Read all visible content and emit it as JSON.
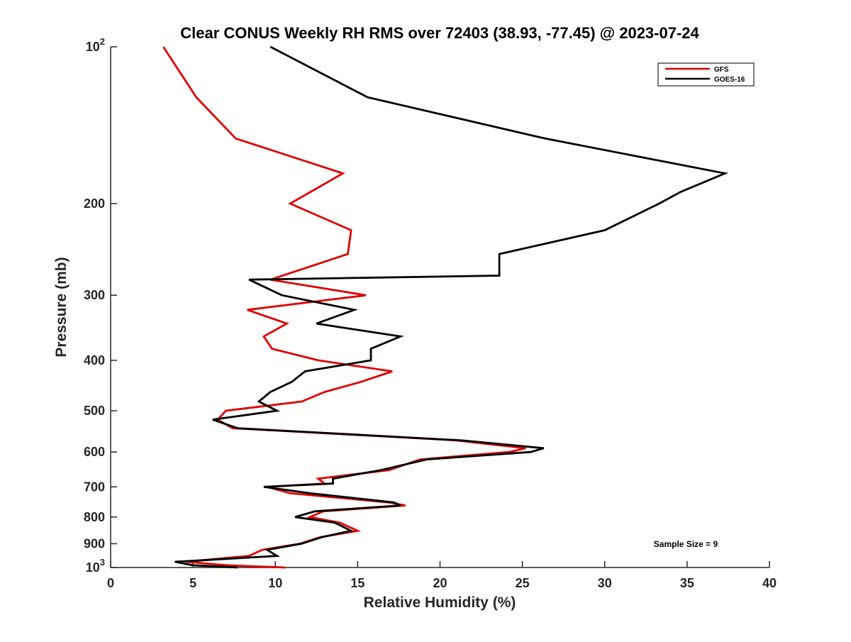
{
  "chart_data": {
    "type": "line",
    "title": "Clear CONUS Weekly RH RMS over 72403 (38.93, -77.45) @ 2023-07-24",
    "xlabel": "Relative Humidity (%)",
    "ylabel": "Pressure (mb)",
    "xlim": [
      0,
      40
    ],
    "ylim": [
      100,
      1000
    ],
    "y_scale": "log",
    "y_reversed": true,
    "grid": false,
    "legend_position": "top-right",
    "annotation": "Sample Size = 9",
    "x_ticks": [
      0,
      5,
      10,
      15,
      20,
      25,
      30,
      35,
      40
    ],
    "y_ticks": [
      {
        "value": 100,
        "base": "10",
        "exp": "2"
      },
      {
        "value": 200,
        "label": "200"
      },
      {
        "value": 300,
        "label": "300"
      },
      {
        "value": 400,
        "label": "400"
      },
      {
        "value": 500,
        "label": "500"
      },
      {
        "value": 600,
        "label": "600"
      },
      {
        "value": 700,
        "label": "700"
      },
      {
        "value": 800,
        "label": "800"
      },
      {
        "value": 900,
        "label": "900"
      },
      {
        "value": 1000,
        "base": "10",
        "exp": "3"
      }
    ],
    "series": [
      {
        "name": "GFS",
        "color": "#e00000",
        "points": [
          [
            3.2,
            100
          ],
          [
            5.2,
            125
          ],
          [
            7.6,
            150
          ],
          [
            14.1,
            175
          ],
          [
            10.9,
            200
          ],
          [
            14.6,
            225
          ],
          [
            14.4,
            250
          ],
          [
            9.7,
            280
          ],
          [
            15.5,
            300
          ],
          [
            8.3,
            320
          ],
          [
            10.7,
            340
          ],
          [
            9.3,
            360
          ],
          [
            9.8,
            380
          ],
          [
            12.6,
            400
          ],
          [
            17.1,
            420
          ],
          [
            15.2,
            440
          ],
          [
            13.0,
            460
          ],
          [
            11.6,
            480
          ],
          [
            7.0,
            500
          ],
          [
            6.5,
            520
          ],
          [
            7.4,
            540
          ],
          [
            21.0,
            570
          ],
          [
            25.2,
            590
          ],
          [
            24.2,
            600
          ],
          [
            18.8,
            620
          ],
          [
            16.9,
            650
          ],
          [
            12.6,
            675
          ],
          [
            13.0,
            690
          ],
          [
            9.5,
            700
          ],
          [
            10.9,
            720
          ],
          [
            16.9,
            750
          ],
          [
            17.9,
            760
          ],
          [
            12.9,
            780
          ],
          [
            12.1,
            800
          ],
          [
            13.9,
            820
          ],
          [
            15.0,
            850
          ],
          [
            12.7,
            875
          ],
          [
            11.5,
            900
          ],
          [
            9.2,
            925
          ],
          [
            8.4,
            950
          ],
          [
            5.3,
            970
          ],
          [
            4.6,
            975
          ],
          [
            7.0,
            990
          ],
          [
            10.6,
            1000
          ]
        ]
      },
      {
        "name": "GOES-16",
        "color": "#000000",
        "points": [
          [
            9.7,
            100
          ],
          [
            15.6,
            125
          ],
          [
            26.4,
            150
          ],
          [
            37.3,
            175
          ],
          [
            34.6,
            190
          ],
          [
            33.3,
            200
          ],
          [
            30.0,
            225
          ],
          [
            23.6,
            250
          ],
          [
            23.6,
            275
          ],
          [
            8.4,
            280
          ],
          [
            10.4,
            300
          ],
          [
            14.8,
            320
          ],
          [
            12.5,
            340
          ],
          [
            17.6,
            360
          ],
          [
            15.8,
            380
          ],
          [
            15.8,
            400
          ],
          [
            11.8,
            420
          ],
          [
            11.0,
            440
          ],
          [
            9.7,
            460
          ],
          [
            9.0,
            480
          ],
          [
            10.1,
            500
          ],
          [
            6.2,
            520
          ],
          [
            7.7,
            540
          ],
          [
            21.3,
            570
          ],
          [
            26.3,
            590
          ],
          [
            25.5,
            600
          ],
          [
            19.2,
            620
          ],
          [
            16.4,
            650
          ],
          [
            13.5,
            675
          ],
          [
            13.5,
            690
          ],
          [
            9.3,
            700
          ],
          [
            12.1,
            720
          ],
          [
            17.2,
            750
          ],
          [
            17.6,
            760
          ],
          [
            12.4,
            780
          ],
          [
            11.2,
            800
          ],
          [
            13.6,
            820
          ],
          [
            14.6,
            850
          ],
          [
            12.8,
            875
          ],
          [
            11.6,
            900
          ],
          [
            9.5,
            925
          ],
          [
            10.1,
            950
          ],
          [
            5.2,
            970
          ],
          [
            3.9,
            975
          ],
          [
            5.0,
            990
          ],
          [
            7.7,
            1000
          ]
        ]
      }
    ]
  }
}
